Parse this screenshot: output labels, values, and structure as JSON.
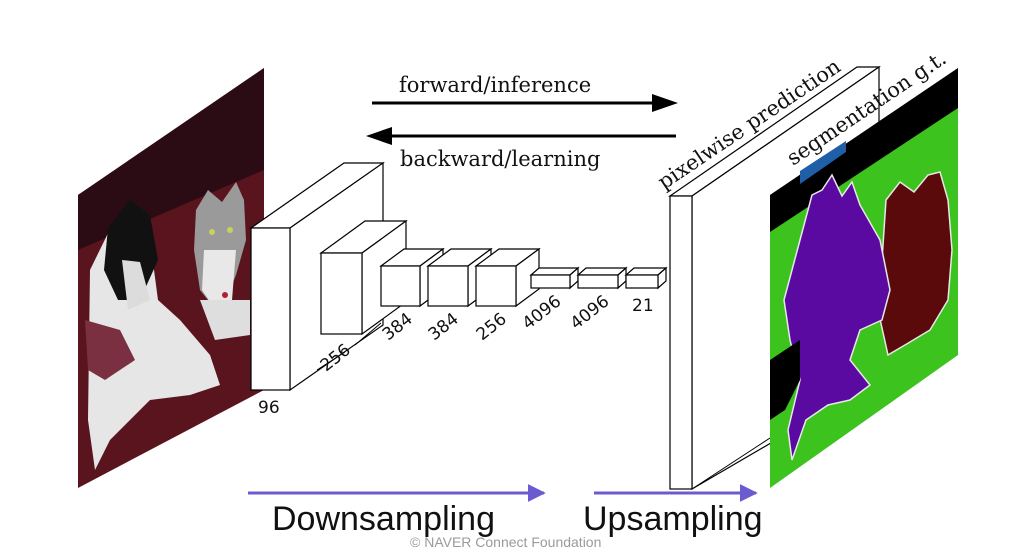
{
  "arrows": {
    "forward_label": "forward/inference",
    "backward_label": "backward/learning"
  },
  "stage_labels": {
    "prediction": "pixelwise prediction",
    "ground_truth": "segmentation g.t."
  },
  "layer_labels": [
    "96",
    "256",
    "384",
    "384",
    "256",
    "4096",
    "4096",
    "21"
  ],
  "captions": {
    "downsampling": "Downsampling",
    "upsampling": "Upsampling"
  },
  "footer": {
    "copyright": "© NAVER Connect Foundation"
  },
  "colors": {
    "caption_arrow": "#6a5bd1",
    "seg_background": "#3cc31e",
    "seg_dog": "#5a0aa0",
    "seg_cat": "#5a0a0a",
    "seg_bar": "#1f5fa8",
    "photo_background": "#5a141e"
  }
}
